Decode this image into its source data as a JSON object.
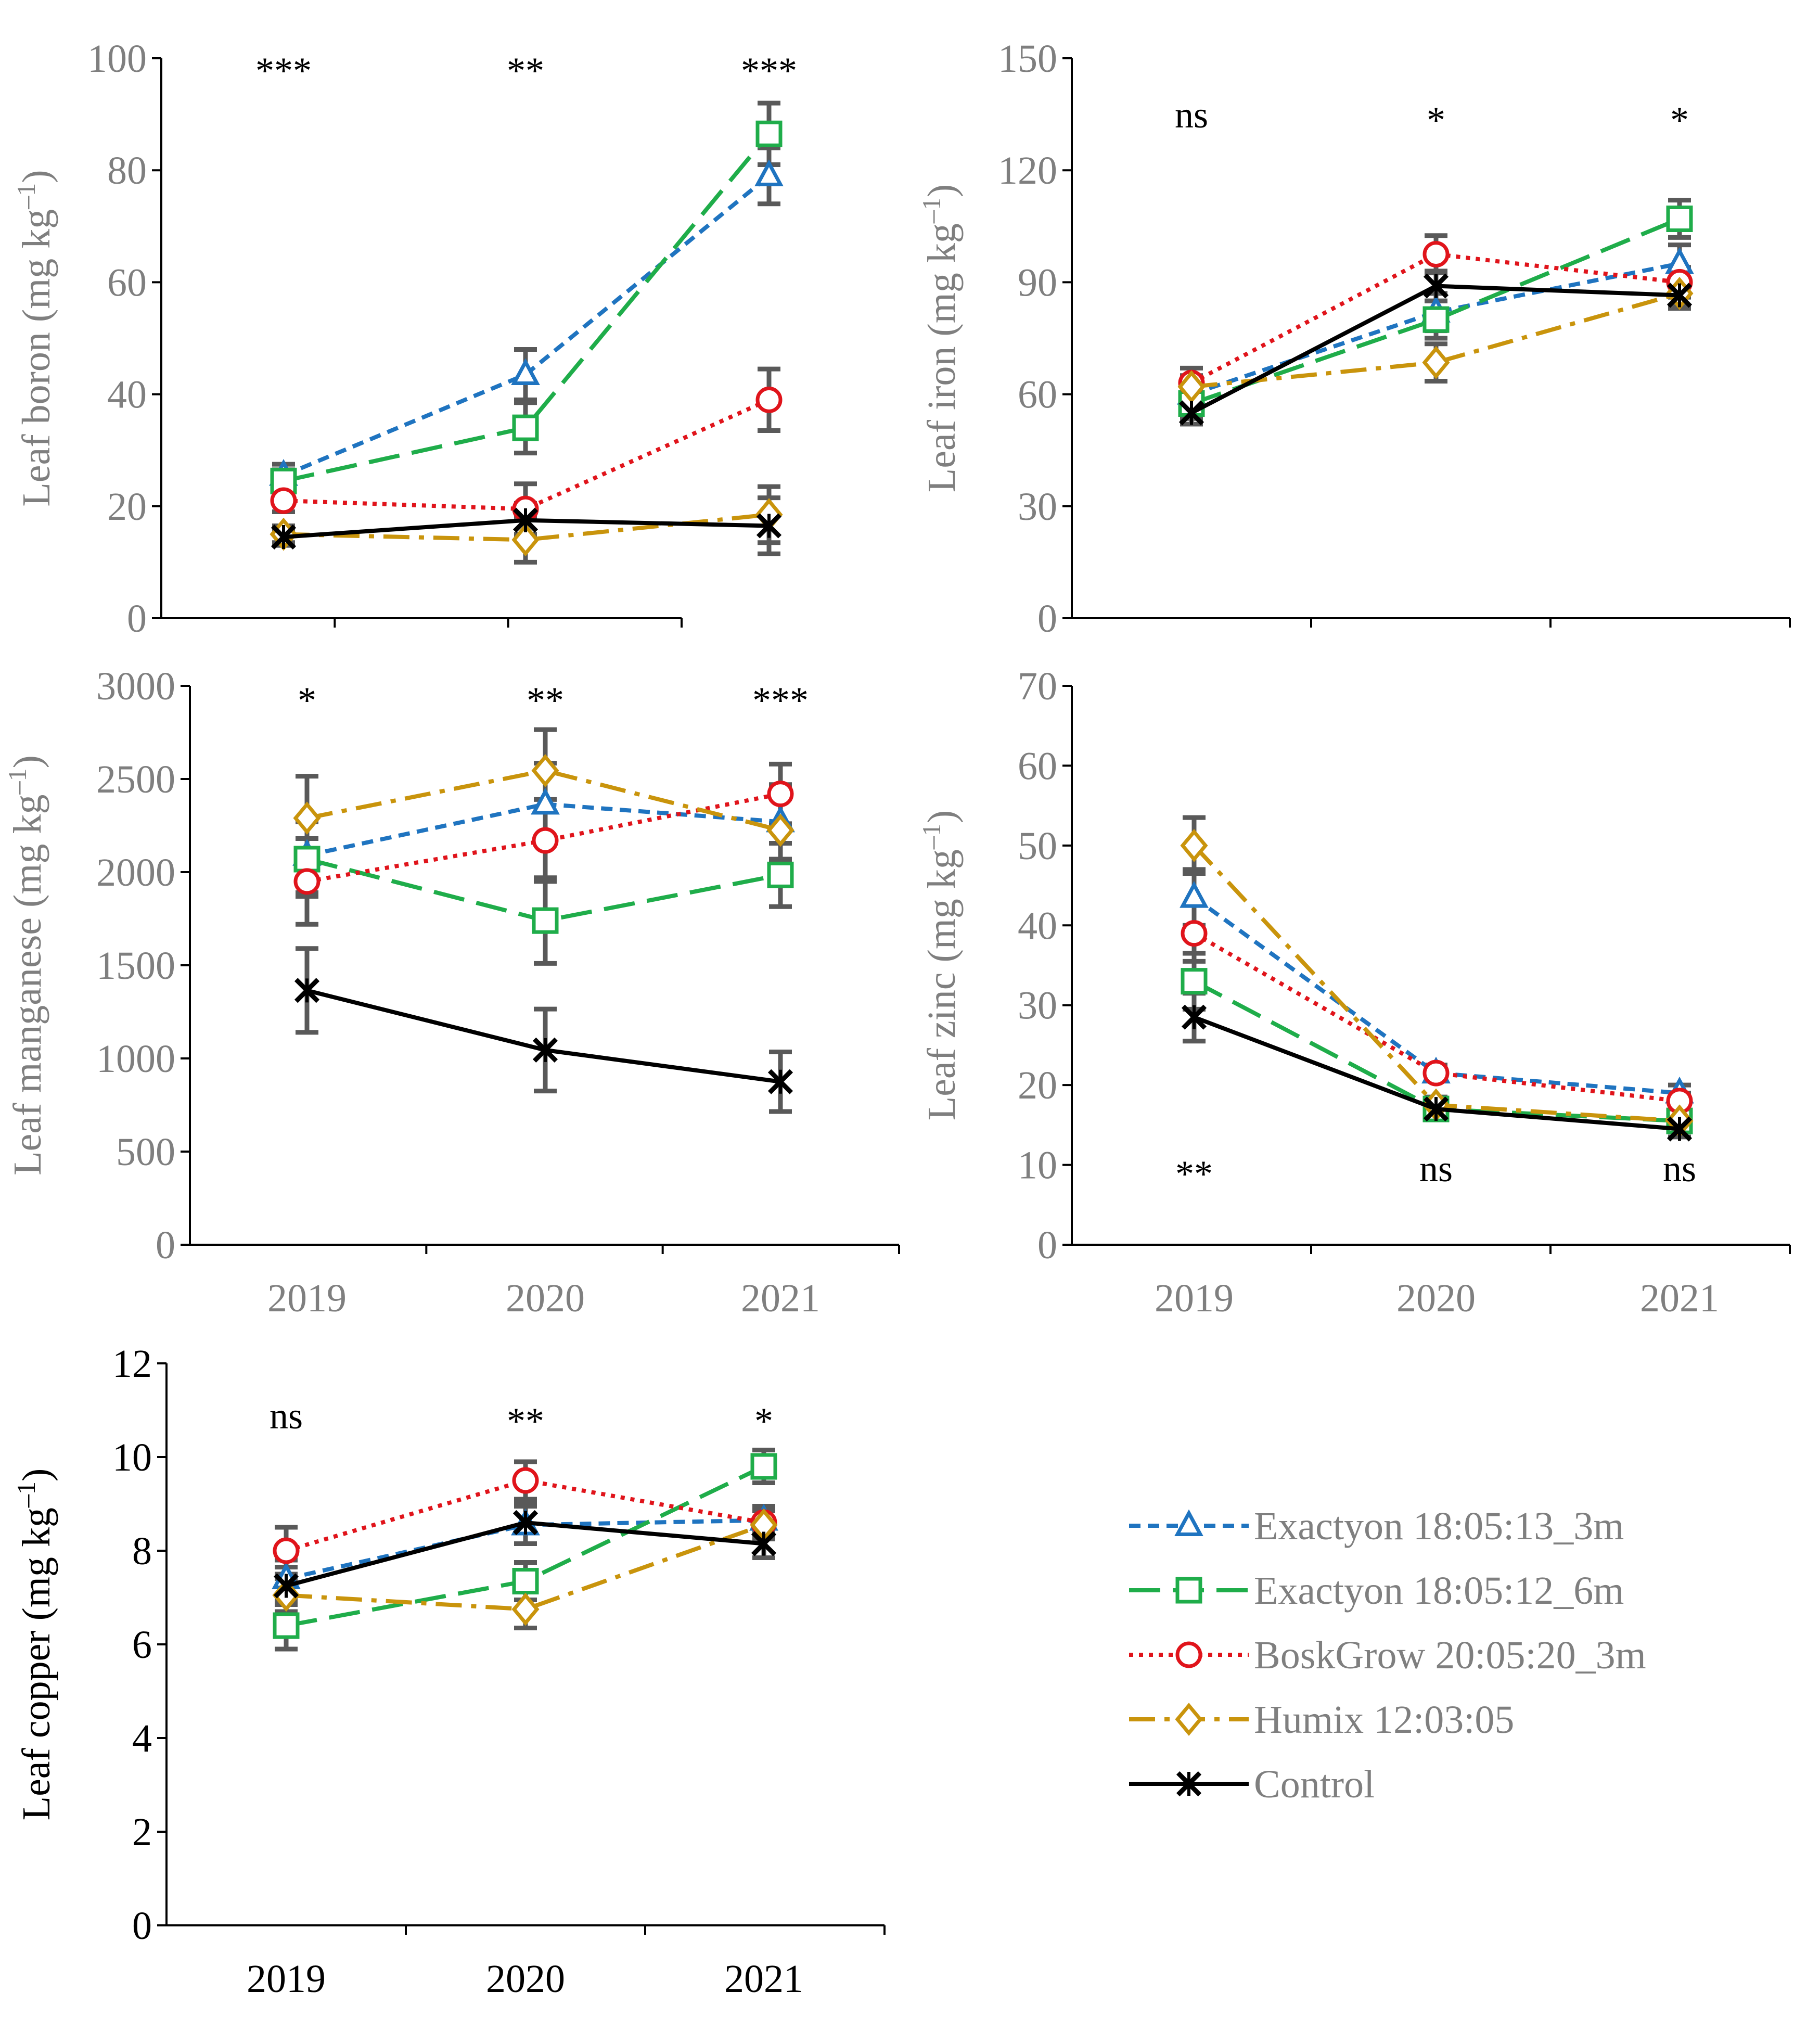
{
  "colors": {
    "exactyon_3m": "#1f74c0",
    "exactyon_6m": "#1fad4a",
    "boskgrow": "#e0141b",
    "humix": "#c9940c",
    "control": "#000000",
    "error_bar": "#595959",
    "axis_text": "#7f7f7f"
  },
  "legend": [
    {
      "key": "exactyon_3m",
      "label": "Exactyon 18:05:13_3m",
      "marker": "triangle-icon",
      "dash": "short-dash"
    },
    {
      "key": "exactyon_6m",
      "label": "Exactyon 18:05:12_6m",
      "marker": "square-icon",
      "dash": "long-dash"
    },
    {
      "key": "boskgrow",
      "label": "BoskGrow 20:05:20_3m",
      "marker": "circle-icon",
      "dash": "dotted"
    },
    {
      "key": "humix",
      "label": "Humix 12:03:05",
      "marker": "diamond-icon",
      "dash": "dash-dot"
    },
    {
      "key": "control",
      "label": "Control",
      "marker": "star-cross-icon",
      "dash": "solid"
    }
  ],
  "chart_data": [
    {
      "id": "boron",
      "type": "line",
      "ylabel": "Leaf boron (mg kg",
      "ylabel_sup": "–1",
      "ylabel_close": ")",
      "ylim": [
        0,
        100
      ],
      "yticks": [
        "0",
        "20",
        "40",
        "60",
        "80",
        "100"
      ],
      "categories": [
        "2019",
        "2020",
        "2021"
      ],
      "show_category_labels": false,
      "significance": [
        "***",
        "**",
        "***"
      ],
      "significance_position": "top",
      "series": [
        {
          "key": "exactyon_3m",
          "values": [
            25.5,
            43.5,
            79
          ],
          "errors": [
            2,
            4.5,
            5
          ]
        },
        {
          "key": "exactyon_6m",
          "values": [
            24.5,
            34,
            86.5
          ],
          "errors": [
            2,
            4.5,
            5.5
          ]
        },
        {
          "key": "boskgrow",
          "values": [
            21,
            19.5,
            39
          ],
          "errors": [
            2,
            4.5,
            5.5
          ]
        },
        {
          "key": "humix",
          "values": [
            15,
            14,
            18.5
          ],
          "errors": [
            1.5,
            4,
            5
          ]
        },
        {
          "key": "control",
          "values": [
            14.5,
            17.5,
            16.5
          ],
          "errors": [
            1.5,
            3,
            5
          ]
        }
      ]
    },
    {
      "id": "iron",
      "type": "line",
      "ylabel": "Leaf iron (mg kg",
      "ylabel_sup": "–1",
      "ylabel_close": ")",
      "ylim": [
        0,
        150
      ],
      "yticks": [
        "0",
        "30",
        "60",
        "90",
        "120",
        "150"
      ],
      "categories": [
        "2019",
        "2020",
        "2021"
      ],
      "show_category_labels": false,
      "significance": [
        "ns",
        "*",
        "*"
      ],
      "significance_position": "top",
      "series": [
        {
          "key": "exactyon_3m",
          "values": [
            60,
            82,
            95
          ],
          "errors": [
            4,
            5,
            5
          ]
        },
        {
          "key": "exactyon_6m",
          "values": [
            57.5,
            80,
            107
          ],
          "errors": [
            4,
            5,
            5
          ]
        },
        {
          "key": "boskgrow",
          "values": [
            63,
            97.5,
            90
          ],
          "errors": [
            4,
            5,
            4
          ]
        },
        {
          "key": "humix",
          "values": [
            62,
            68.5,
            87
          ],
          "errors": [
            3,
            5,
            4
          ]
        },
        {
          "key": "control",
          "values": [
            55,
            89,
            86.5
          ],
          "errors": [
            3,
            4,
            3
          ]
        }
      ]
    },
    {
      "id": "manganese",
      "type": "line",
      "ylabel": "Leaf manganese  (mg kg",
      "ylabel_sup": "–1",
      "ylabel_close": ")",
      "ylim": [
        0,
        3000
      ],
      "yticks": [
        "0",
        "500",
        "1000",
        "1500",
        "2000",
        "2500",
        "3000"
      ],
      "categories": [
        "2019",
        "2020",
        "2021"
      ],
      "show_category_labels": true,
      "significance": [
        "*",
        "**",
        "***"
      ],
      "significance_position": "top",
      "series": [
        {
          "key": "exactyon_3m",
          "values": [
            2090,
            2365,
            2270
          ],
          "errors": [
            200,
            220,
            200
          ]
        },
        {
          "key": "exactyon_6m",
          "values": [
            2070,
            1740,
            1985
          ],
          "errors": [
            200,
            230,
            170
          ]
        },
        {
          "key": "boskgrow",
          "values": [
            1950,
            2170,
            2420
          ],
          "errors": [
            230,
            220,
            160
          ]
        },
        {
          "key": "humix",
          "values": [
            2290,
            2545,
            2225
          ],
          "errors": [
            225,
            220,
            170
          ]
        },
        {
          "key": "control",
          "values": [
            1365,
            1045,
            875
          ],
          "errors": [
            225,
            220,
            160
          ]
        }
      ]
    },
    {
      "id": "zinc",
      "type": "line",
      "ylabel": "Leaf zinc  (mg kg",
      "ylabel_sup": "–1",
      "ylabel_close": ")",
      "ylim": [
        0,
        70
      ],
      "yticks": [
        "0",
        "10",
        "20",
        "30",
        "40",
        "50",
        "60",
        "70"
      ],
      "categories": [
        "2019",
        "2020",
        "2021"
      ],
      "show_category_labels": true,
      "significance": [
        "**",
        "ns",
        "ns"
      ],
      "significance_position": "bottom",
      "series": [
        {
          "key": "exactyon_3m",
          "values": [
            43.5,
            21.5,
            19
          ],
          "errors": [
            3.5,
            1,
            1
          ]
        },
        {
          "key": "exactyon_6m",
          "values": [
            33,
            17,
            15.5
          ],
          "errors": [
            3.5,
            1,
            1
          ]
        },
        {
          "key": "boskgrow",
          "values": [
            39,
            21.5,
            18
          ],
          "errors": [
            3.5,
            1,
            1
          ]
        },
        {
          "key": "humix",
          "values": [
            50,
            17.5,
            15.5
          ],
          "errors": [
            3.5,
            1,
            1
          ]
        },
        {
          "key": "control",
          "values": [
            28.5,
            17,
            14.5
          ],
          "errors": [
            3,
            1,
            1
          ]
        }
      ]
    },
    {
      "id": "copper",
      "type": "line",
      "ylabel": "Leaf copper (mg kg",
      "ylabel_sup": "–1",
      "ylabel_close": ")",
      "ylim": [
        0,
        12
      ],
      "yticks": [
        "0",
        "2",
        "4",
        "6",
        "8",
        "10",
        "12"
      ],
      "categories": [
        "2019",
        "2020",
        "2021"
      ],
      "show_category_labels": true,
      "significance": [
        "ns",
        "**",
        "*"
      ],
      "significance_position": "top",
      "series": [
        {
          "key": "exactyon_3m",
          "values": [
            7.4,
            8.55,
            8.65
          ],
          "errors": [
            0.4,
            0.4,
            0.3
          ]
        },
        {
          "key": "exactyon_6m",
          "values": [
            6.4,
            7.35,
            9.8
          ],
          "errors": [
            0.5,
            0.4,
            0.35
          ]
        },
        {
          "key": "boskgrow",
          "values": [
            8.0,
            9.5,
            8.6
          ],
          "errors": [
            0.5,
            0.4,
            0.3
          ]
        },
        {
          "key": "humix",
          "values": [
            7.05,
            6.75,
            8.55
          ],
          "errors": [
            0.35,
            0.4,
            0.3
          ]
        },
        {
          "key": "control",
          "values": [
            7.25,
            8.6,
            8.15
          ],
          "errors": [
            0.4,
            0.45,
            0.3
          ]
        }
      ]
    }
  ]
}
